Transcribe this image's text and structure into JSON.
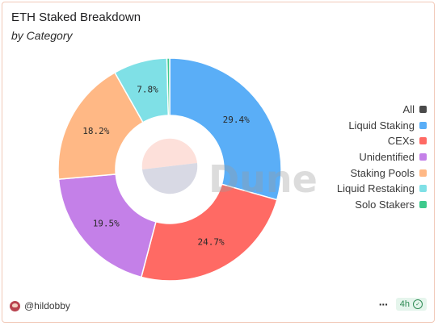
{
  "title": "ETH Staked Breakdown",
  "subtitle": "by Category",
  "watermark": "Dune",
  "footer": {
    "author": "@hildobby",
    "more_label": "···",
    "refresh_label": "4h",
    "refresh_icon": "check-circle-icon"
  },
  "chart_data": {
    "type": "pie",
    "variant": "donut",
    "categories": [
      "Liquid Staking",
      "CEXs",
      "Unidentified",
      "Staking Pools",
      "Liquid Restaking",
      "Solo Stakers"
    ],
    "values": [
      29.4,
      24.7,
      19.5,
      18.2,
      7.8,
      0.4
    ],
    "labels": [
      "29.4%",
      "24.7%",
      "19.5%",
      "18.2%",
      "7.8%",
      ""
    ],
    "colors": [
      "#5aaef7",
      "#ff6a64",
      "#c480e8",
      "#ffb885",
      "#7fe0e6",
      "#3ec98c"
    ],
    "legend": {
      "placement": "right",
      "items": [
        {
          "label": "All",
          "color": "#4a4a4a"
        },
        {
          "label": "Liquid Staking",
          "color": "#5aaef7"
        },
        {
          "label": "CEXs",
          "color": "#ff6a64"
        },
        {
          "label": "Unidentified",
          "color": "#c480e8"
        },
        {
          "label": "Staking Pools",
          "color": "#ffb885"
        },
        {
          "label": "Liquid Restaking",
          "color": "#7fe0e6"
        },
        {
          "label": "Solo Stakers",
          "color": "#3ec98c"
        }
      ]
    }
  }
}
